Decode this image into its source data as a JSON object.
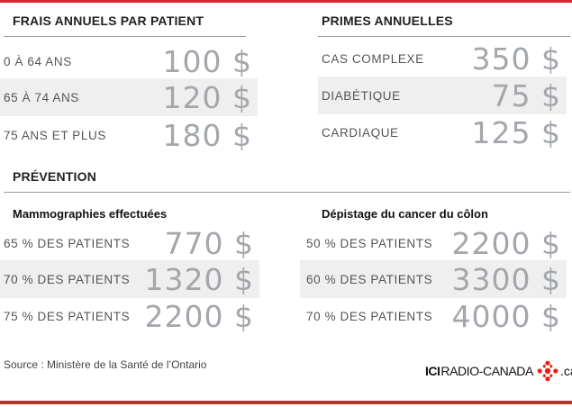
{
  "sections": {
    "frais": {
      "title": "FRAIS ANNUELS PAR PATIENT",
      "rows": [
        {
          "label": "0 À 64 ANS",
          "value": "100 $"
        },
        {
          "label": "65 À 74 ANS",
          "value": "120 $"
        },
        {
          "label": "75 ANS ET PLUS",
          "value": "180 $"
        }
      ]
    },
    "primes": {
      "title": "PRIMES ANNUELLES",
      "rows": [
        {
          "label": "CAS COMPLEXE",
          "value": "350 $"
        },
        {
          "label": "DIABÉTIQUE",
          "value": "75 $"
        },
        {
          "label": "CARDIAQUE",
          "value": "125 $"
        }
      ]
    },
    "prevention": {
      "title": "PRÉVENTION",
      "mammo": {
        "title": "Mammographies effectuées",
        "rows": [
          {
            "label": "65 % DES PATIENTS",
            "value": "770 $"
          },
          {
            "label": "70 % DES PATIENTS",
            "value": "1320 $"
          },
          {
            "label": "75 % DES PATIENTS",
            "value": "2200 $"
          }
        ]
      },
      "colon": {
        "title": "Dépistage du cancer du côlon",
        "rows": [
          {
            "label": "50 % DES PATIENTS",
            "value": "2200 $"
          },
          {
            "label": "60 % DES PATIENTS",
            "value": "3300 $"
          },
          {
            "label": "70 % DES PATIENTS",
            "value": "4000 $"
          }
        ]
      }
    }
  },
  "footer": {
    "source": "Source : Ministère de la Santé de l’Ontario",
    "logo": {
      "ici": "ICI",
      "radio": "RADIO-CANADA",
      "ca": ".ca"
    }
  },
  "colors": {
    "accent_red": "#d7262e",
    "value_gray": "#a3a7ab",
    "row_shade": "#efefef",
    "logo_gem": "#e2231a"
  },
  "icons": {
    "logo": "radio-canada-gem-icon"
  }
}
